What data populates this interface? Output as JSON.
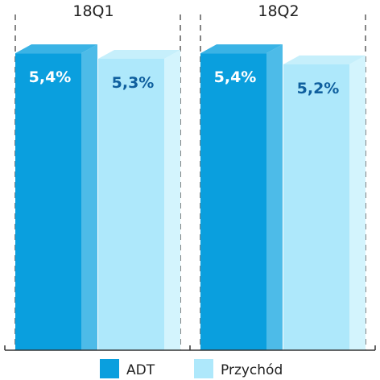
{
  "chart_data": {
    "type": "bar",
    "categories": [
      "18Q1",
      "18Q2"
    ],
    "series": [
      {
        "name": "ADT",
        "values": [
          5.4,
          5.4
        ],
        "value_labels": [
          "5,4%",
          "5,4%"
        ]
      },
      {
        "name": "Przychód",
        "values": [
          5.3,
          5.2
        ],
        "value_labels": [
          "5,3%",
          "5,2%"
        ]
      }
    ],
    "ylim": [
      0,
      5.9
    ],
    "style": "3d-columns",
    "legend_position": "bottom",
    "colors": {
      "ADT": {
        "front": "#0a9fde",
        "side": "#4dbbe8",
        "top": "#3ab3e5",
        "label": "#ffffff"
      },
      "Przychód": {
        "front": "#aee8fb",
        "side": "#d3f4fd",
        "top": "#c6effb",
        "label": "#0f5f9e"
      },
      "axis": "#333333"
    }
  }
}
